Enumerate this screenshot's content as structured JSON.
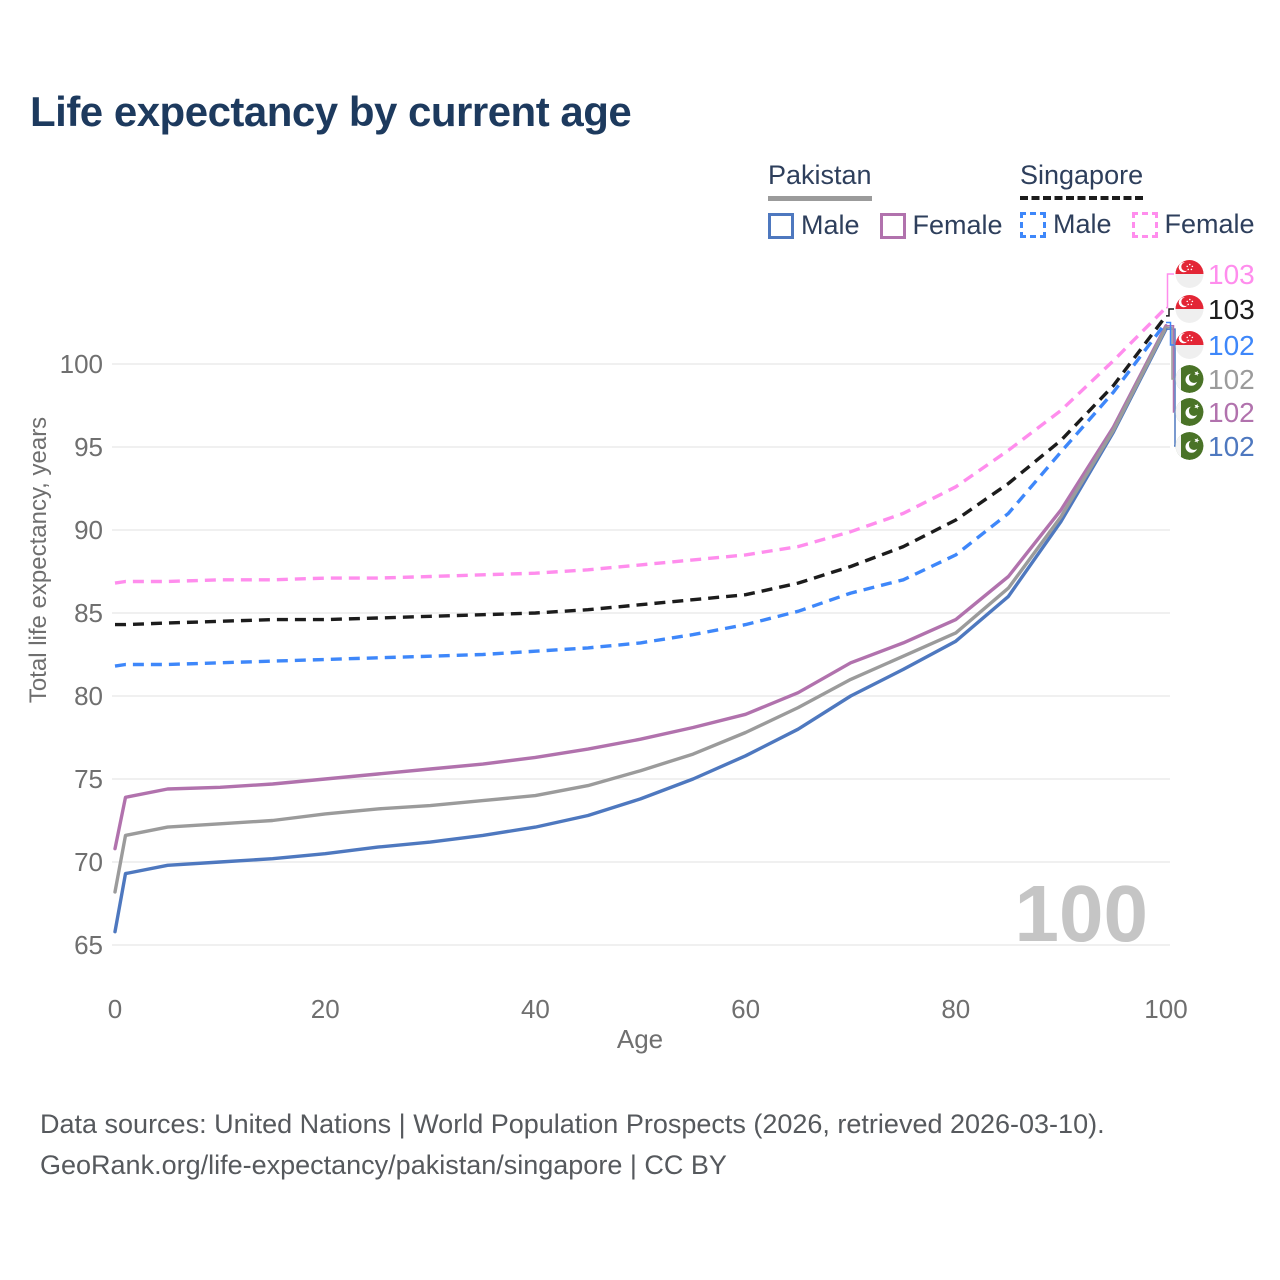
{
  "title": "Life expectancy by current age",
  "watermark": "100",
  "legend": {
    "groups": [
      {
        "country": "Pakistan",
        "style": "solid",
        "underline_color": "#9b9b9b",
        "items": [
          {
            "label": "Male",
            "color": "#4e78bf"
          },
          {
            "label": "Female",
            "color": "#b172ad"
          }
        ]
      },
      {
        "country": "Singapore",
        "style": "dashed",
        "underline_color": "#1c1c1c",
        "items": [
          {
            "label": "Male",
            "color": "#3e87fa"
          },
          {
            "label": "Female",
            "color": "#ff8ded"
          }
        ]
      }
    ]
  },
  "footer": {
    "line1": "Data sources: United Nations | World Population Prospects (2026, retrieved 2026-03-10).",
    "line2": "GeoRank.org/life-expectancy/pakistan/singapore | CC BY"
  },
  "colors": {
    "grid": "#e8e8e8",
    "axis_text": "#6f6f6f",
    "title_text": "#1d3a5e",
    "footer_text": "#56595d",
    "watermark": "#c5c5c5",
    "singapore_flag_red": "#e32636",
    "singapore_flag_white": "#efefef",
    "pakistan_flag_green": "#4a7327",
    "pakistan_flag_white": "#f4f4f4"
  },
  "chart_data": {
    "type": "line",
    "title": "Life expectancy by current age",
    "xlabel": "Age",
    "ylabel": "Total life expectancy, years",
    "xlim": [
      0,
      100
    ],
    "ylim": [
      65,
      103.5
    ],
    "x_ticks": [
      0,
      20,
      40,
      60,
      80,
      100
    ],
    "y_ticks": [
      65,
      70,
      75,
      80,
      85,
      90,
      95,
      100
    ],
    "grid": "horizontal",
    "legend_position": "top-right",
    "x": [
      0,
      1,
      5,
      10,
      15,
      20,
      25,
      30,
      35,
      40,
      45,
      50,
      55,
      60,
      65,
      70,
      75,
      80,
      85,
      90,
      95,
      100
    ],
    "series": [
      {
        "name": "Pakistan Male",
        "country": "Pakistan",
        "sex": "Male",
        "color": "#4e78bf",
        "dash": "solid",
        "flag": "pakistan",
        "end_label": "102",
        "end_row": 5,
        "values": [
          65.8,
          69.3,
          69.8,
          70.0,
          70.2,
          70.5,
          70.9,
          71.2,
          71.6,
          72.1,
          72.8,
          73.8,
          75.0,
          76.4,
          78.0,
          80.0,
          81.6,
          83.3,
          86.0,
          90.5,
          95.9,
          102.1
        ]
      },
      {
        "name": "Pakistan Female",
        "country": "Pakistan",
        "sex": "Female",
        "color": "#b172ad",
        "dash": "solid",
        "flag": "pakistan",
        "end_label": "102",
        "end_row": 4,
        "values": [
          70.8,
          73.9,
          74.4,
          74.5,
          74.7,
          75.0,
          75.3,
          75.6,
          75.9,
          76.3,
          76.8,
          77.4,
          78.1,
          78.9,
          80.2,
          82.0,
          83.2,
          84.6,
          87.2,
          91.2,
          96.2,
          102.3
        ]
      },
      {
        "name": "Pakistan Both sexes",
        "country": "Pakistan",
        "sex": "Both",
        "color": "#9b9b9b",
        "dash": "solid",
        "flag": "pakistan",
        "end_label": "102",
        "end_row": 3,
        "values": [
          68.2,
          71.6,
          72.1,
          72.3,
          72.5,
          72.9,
          73.2,
          73.4,
          73.7,
          74.0,
          74.6,
          75.5,
          76.5,
          77.8,
          79.3,
          81.0,
          82.4,
          83.8,
          86.5,
          90.8,
          96.0,
          102.2
        ]
      },
      {
        "name": "Singapore Male",
        "country": "Singapore",
        "sex": "Male",
        "color": "#3e87fa",
        "dash": "dashed",
        "flag": "singapore",
        "end_label": "102",
        "end_row": 2,
        "values": [
          81.8,
          81.9,
          81.9,
          82.0,
          82.1,
          82.2,
          82.3,
          82.4,
          82.5,
          82.7,
          82.9,
          83.2,
          83.7,
          84.3,
          85.1,
          86.2,
          87.0,
          88.5,
          91.0,
          94.7,
          98.3,
          102.5
        ]
      },
      {
        "name": "Singapore Both sexes",
        "country": "Singapore",
        "sex": "Both",
        "color": "#1c1c1c",
        "dash": "dashed",
        "flag": "singapore",
        "end_label": "103",
        "end_row": 1,
        "values": [
          84.3,
          84.3,
          84.4,
          84.5,
          84.6,
          84.6,
          84.7,
          84.8,
          84.9,
          85.0,
          85.2,
          85.5,
          85.8,
          86.1,
          86.8,
          87.8,
          89.0,
          90.6,
          92.8,
          95.4,
          98.7,
          102.9
        ]
      },
      {
        "name": "Singapore Female",
        "country": "Singapore",
        "sex": "Female",
        "color": "#ff8ded",
        "dash": "dashed",
        "flag": "singapore",
        "end_label": "103",
        "end_row": 0,
        "values": [
          86.8,
          86.9,
          86.9,
          87.0,
          87.0,
          87.1,
          87.1,
          87.2,
          87.3,
          87.4,
          87.6,
          87.9,
          88.2,
          88.5,
          89.0,
          89.9,
          91.0,
          92.6,
          94.8,
          97.2,
          100.2,
          103.4
        ]
      }
    ]
  }
}
